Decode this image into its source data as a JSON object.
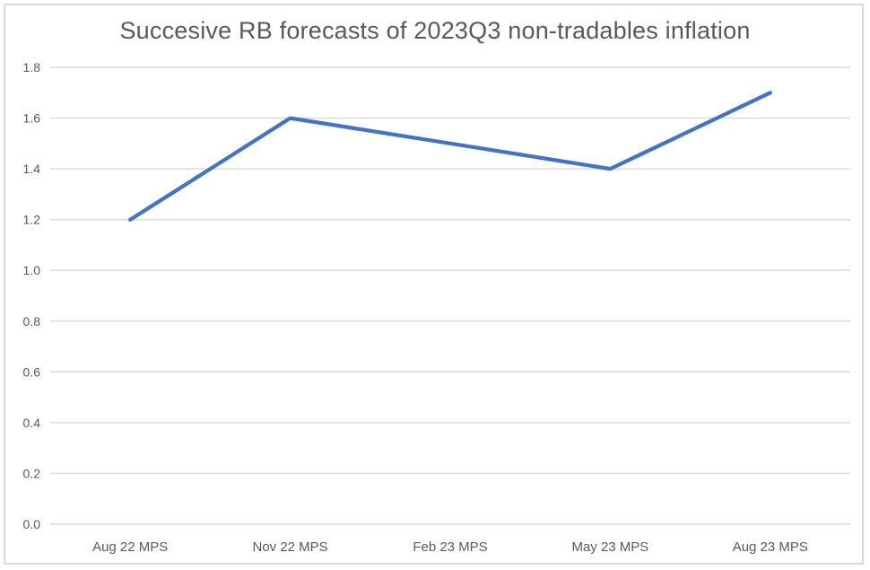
{
  "chart_data": {
    "type": "line",
    "title": "Succesive RB forecasts of 2023Q3 non-tradables inflation",
    "categories": [
      "Aug 22 MPS",
      "Nov 22 MPS",
      "Feb 23 MPS",
      "May 23 MPS",
      "Aug 23 MPS"
    ],
    "values": [
      1.2,
      1.6,
      1.5,
      1.4,
      1.7
    ],
    "xlabel": "",
    "ylabel": "",
    "ylim": [
      0.0,
      1.8
    ],
    "ytick_step": 0.2,
    "ytick_decimals": 1,
    "grid": true,
    "legend": "none",
    "colors": {
      "line": "#4472C4",
      "gridline": "#d9d9d9",
      "axis_text": "#595959",
      "title_text": "#595959",
      "chart_border": "#d9d9d9",
      "background": "#ffffff"
    }
  }
}
